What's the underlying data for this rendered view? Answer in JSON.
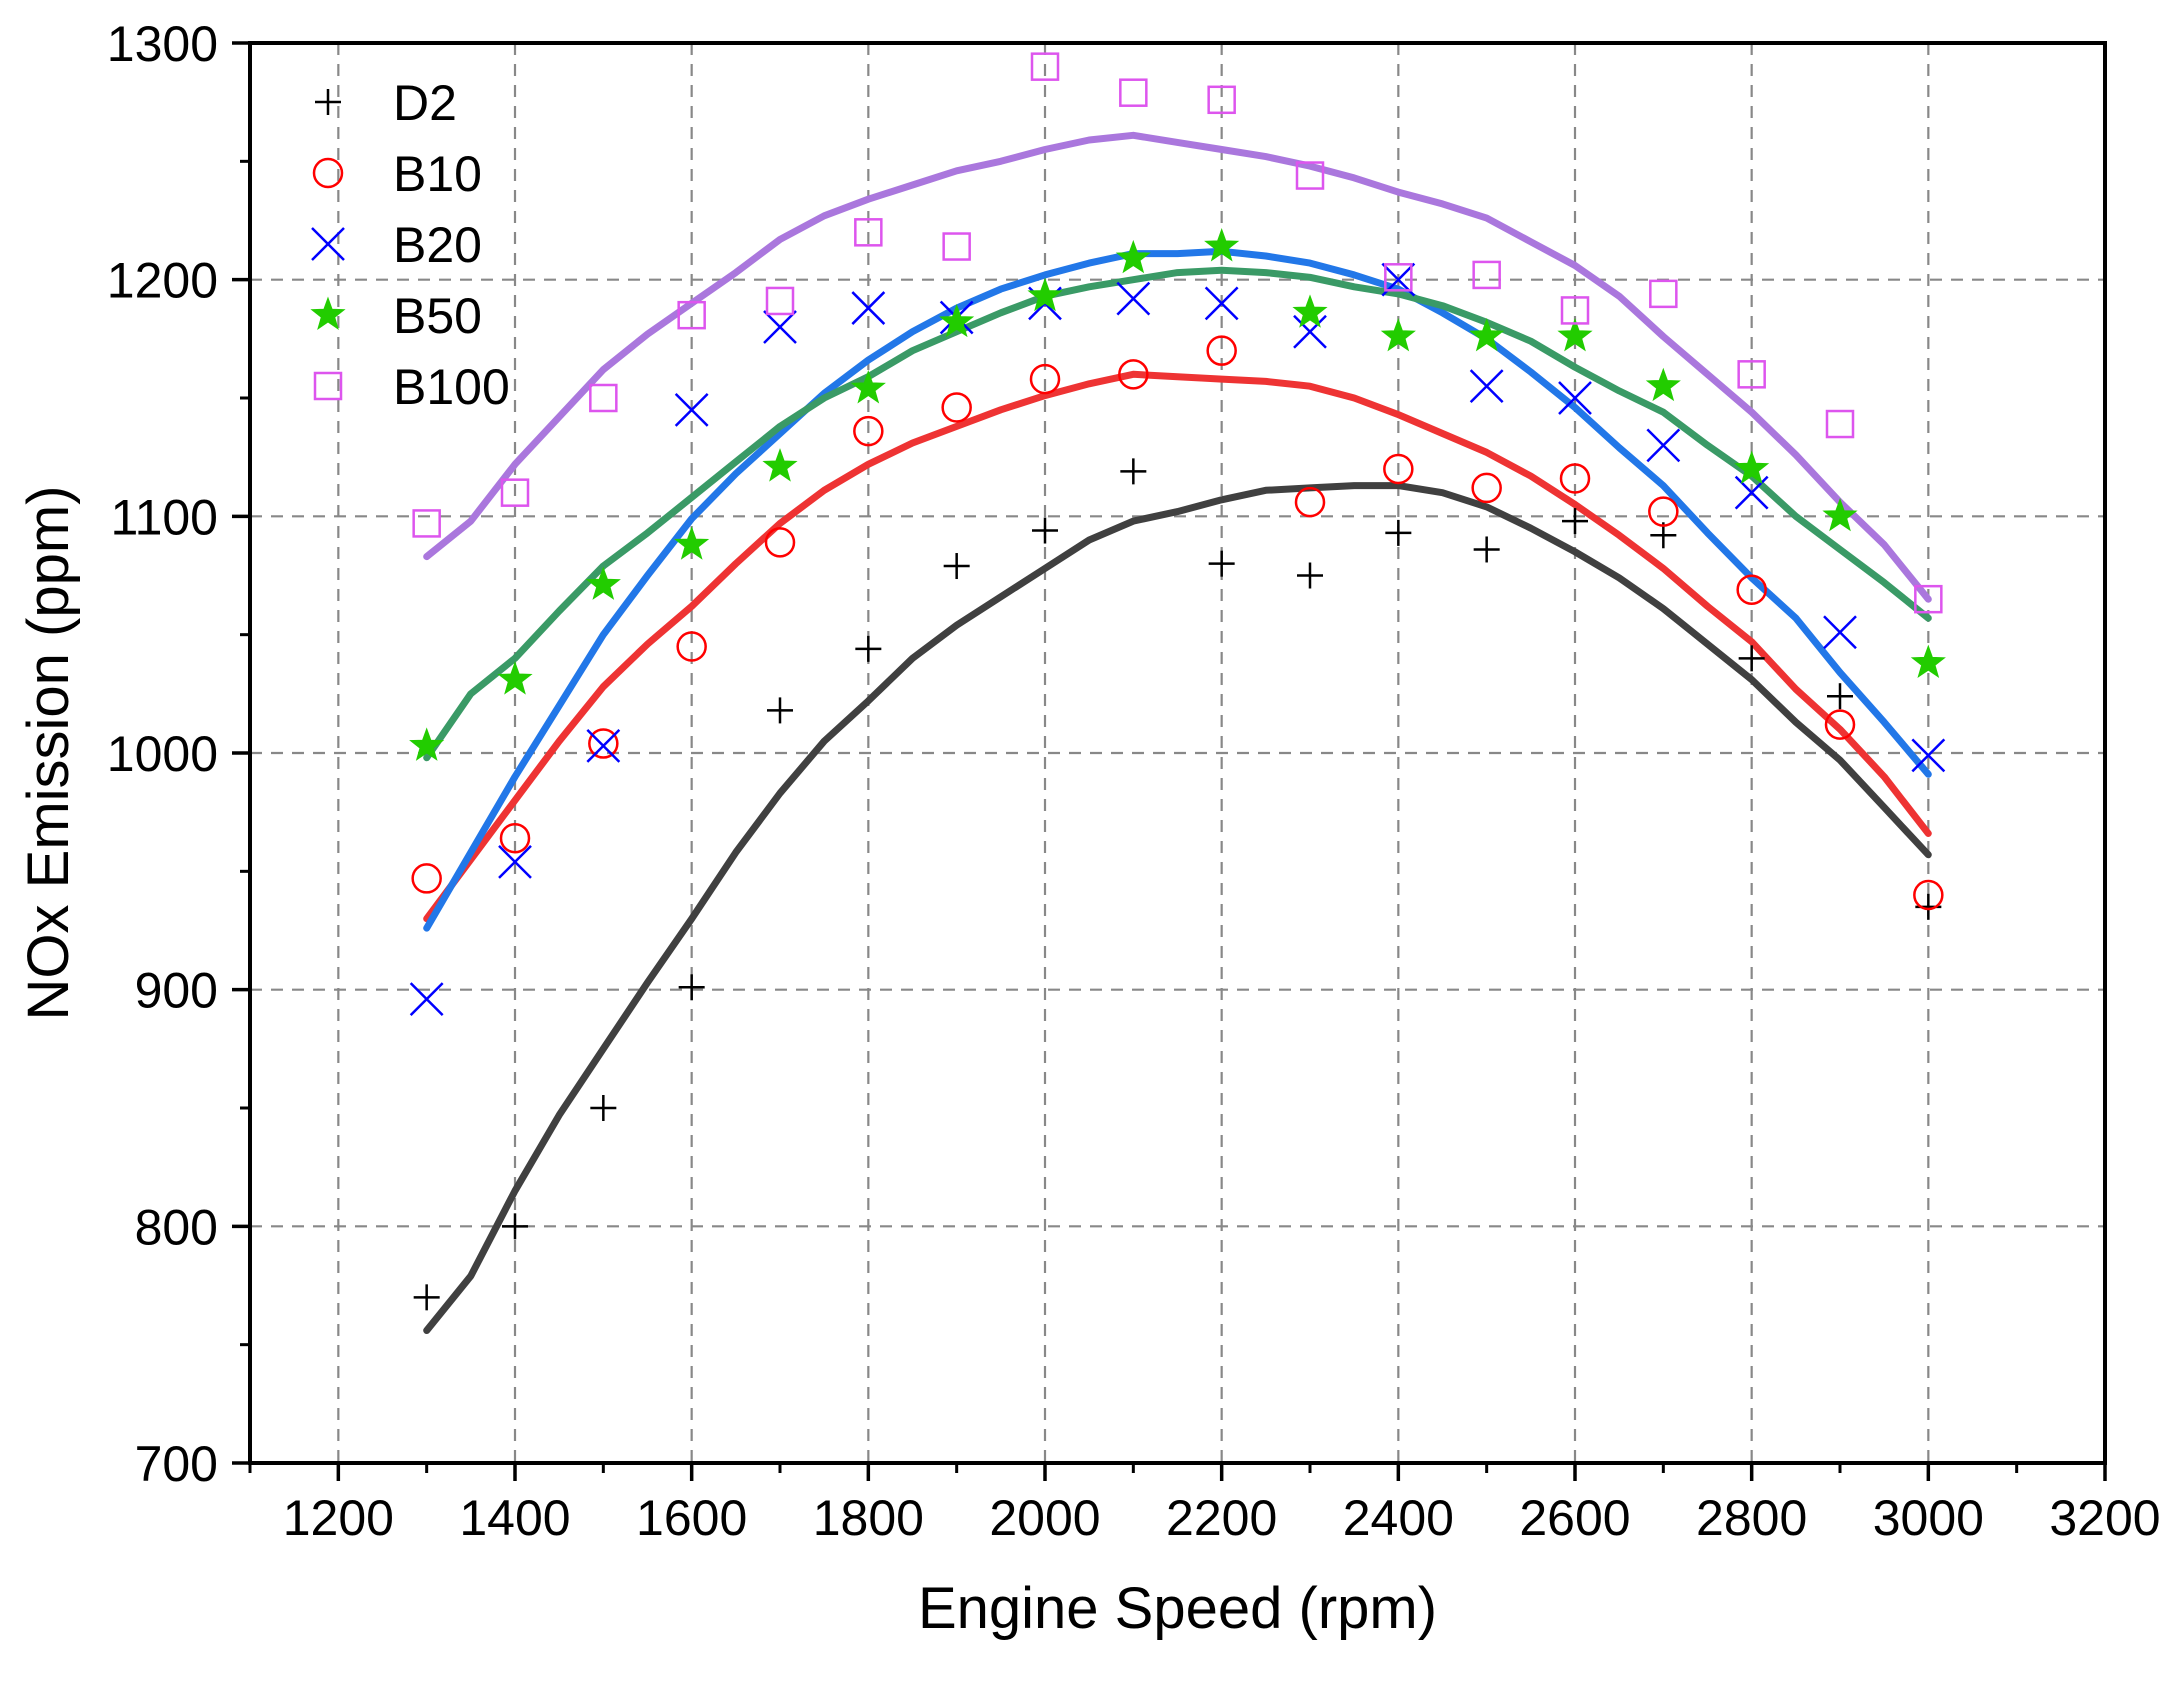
{
  "chart_data": {
    "type": "scatter",
    "title": "",
    "xlabel": "Engine Speed  (rpm)",
    "ylabel": "NOx Emission (ppm)",
    "xlim": [
      1100,
      3200
    ],
    "ylim": [
      700,
      1300
    ],
    "xticks": [
      1200,
      1400,
      1600,
      1800,
      2000,
      2200,
      2400,
      2600,
      2800,
      3000,
      3200
    ],
    "yticks": [
      700,
      800,
      900,
      1000,
      1100,
      1200,
      1300
    ],
    "x_tick_labels": [
      "1200",
      "1400",
      "1600",
      "1800",
      "2000",
      "2200",
      "2400",
      "2600",
      "2800",
      "3000",
      "3200"
    ],
    "y_tick_labels": [
      "700",
      "800",
      "900",
      "1000",
      "1100",
      "1200",
      "1300"
    ],
    "grid": true,
    "legend_position": "top-left",
    "series": [
      {
        "name": "D2",
        "marker": "plus",
        "color": "#000000",
        "line_color": "#404040",
        "x": [
          1300,
          1400,
          1500,
          1600,
          1700,
          1800,
          1900,
          2000,
          2100,
          2200,
          2300,
          2400,
          2500,
          2600,
          2700,
          2800,
          2900,
          3000
        ],
        "y": [
          770,
          800,
          850,
          901,
          1018,
          1044,
          1079,
          1094,
          1119,
          1080,
          1075,
          1093,
          1086,
          1098,
          1092,
          1040,
          1024,
          935
        ],
        "fit_x": [
          1300,
          1350,
          1400,
          1450,
          1500,
          1550,
          1600,
          1650,
          1700,
          1750,
          1800,
          1850,
          1900,
          1950,
          2000,
          2050,
          2100,
          2150,
          2200,
          2250,
          2300,
          2350,
          2400,
          2450,
          2500,
          2550,
          2600,
          2650,
          2700,
          2750,
          2800,
          2850,
          2900,
          2950,
          3000
        ],
        "fit_y": [
          756,
          779,
          815,
          847,
          875,
          903,
          930,
          958,
          983,
          1005,
          1022,
          1040,
          1054,
          1066,
          1078,
          1090,
          1098,
          1102,
          1107,
          1111,
          1112,
          1113,
          1113,
          1110,
          1104,
          1095,
          1085,
          1074,
          1061,
          1046,
          1031,
          1013,
          997,
          977,
          957
        ]
      },
      {
        "name": "B10",
        "marker": "circle",
        "color": "#ff0000",
        "line_color": "#ee3333",
        "x": [
          1300,
          1400,
          1500,
          1600,
          1700,
          1800,
          1900,
          2000,
          2100,
          2200,
          2300,
          2400,
          2500,
          2600,
          2700,
          2800,
          2900,
          3000
        ],
        "y": [
          947,
          964,
          1004,
          1045,
          1089,
          1136,
          1146,
          1158,
          1160,
          1170,
          1106,
          1120,
          1112,
          1116,
          1102,
          1069,
          1012,
          940
        ],
        "fit_x": [
          1300,
          1350,
          1400,
          1450,
          1500,
          1550,
          1600,
          1650,
          1700,
          1750,
          1800,
          1850,
          1900,
          1950,
          2000,
          2050,
          2100,
          2150,
          2200,
          2250,
          2300,
          2350,
          2400,
          2450,
          2500,
          2550,
          2600,
          2650,
          2700,
          2750,
          2800,
          2850,
          2900,
          2950,
          3000
        ],
        "fit_y": [
          930,
          955,
          980,
          1005,
          1028,
          1046,
          1062,
          1080,
          1097,
          1111,
          1122,
          1131,
          1138,
          1145,
          1151,
          1156,
          1160,
          1159,
          1158,
          1157,
          1155,
          1150,
          1143,
          1135,
          1127,
          1117,
          1105,
          1092,
          1078,
          1062,
          1047,
          1027,
          1010,
          990,
          966
        ]
      },
      {
        "name": "B20",
        "marker": "x",
        "color": "#0000ff",
        "line_color": "#2277e8",
        "x": [
          1300,
          1400,
          1500,
          1600,
          1700,
          1800,
          1900,
          2000,
          2100,
          2200,
          2300,
          2400,
          2500,
          2600,
          2700,
          2800,
          2900,
          3000
        ],
        "y": [
          896,
          954,
          1003,
          1145,
          1180,
          1188,
          1184,
          1190,
          1192,
          1190,
          1178,
          1200,
          1155,
          1150,
          1130,
          1110,
          1051,
          999
        ],
        "fit_x": [
          1300,
          1350,
          1400,
          1450,
          1500,
          1550,
          1600,
          1650,
          1700,
          1750,
          1800,
          1850,
          1900,
          1950,
          2000,
          2050,
          2100,
          2150,
          2200,
          2250,
          2300,
          2350,
          2400,
          2450,
          2500,
          2550,
          2600,
          2650,
          2700,
          2750,
          2800,
          2850,
          2900,
          2950,
          3000
        ],
        "fit_y": [
          926,
          958,
          990,
          1020,
          1050,
          1075,
          1099,
          1118,
          1135,
          1152,
          1166,
          1178,
          1188,
          1196,
          1202,
          1207,
          1211,
          1211,
          1212,
          1210,
          1207,
          1202,
          1196,
          1186,
          1175,
          1161,
          1146,
          1129,
          1113,
          1093,
          1074,
          1057,
          1034,
          1013,
          991
        ]
      },
      {
        "name": "B50",
        "marker": "star",
        "color": "#22cc00",
        "line_color": "#3a9a66",
        "x": [
          1300,
          1400,
          1500,
          1600,
          1700,
          1800,
          1900,
          2000,
          2100,
          2200,
          2300,
          2400,
          2500,
          2600,
          2700,
          2800,
          2900,
          3000
        ],
        "y": [
          1003,
          1031,
          1071,
          1088,
          1121,
          1154,
          1182,
          1193,
          1209,
          1214,
          1186,
          1176,
          1176,
          1176,
          1155,
          1120,
          1100,
          1038
        ],
        "fit_x": [
          1300,
          1350,
          1400,
          1450,
          1500,
          1550,
          1600,
          1650,
          1700,
          1750,
          1800,
          1850,
          1900,
          1950,
          2000,
          2050,
          2100,
          2150,
          2200,
          2250,
          2300,
          2350,
          2400,
          2450,
          2500,
          2550,
          2600,
          2650,
          2700,
          2750,
          2800,
          2850,
          2900,
          2950,
          3000
        ],
        "fit_y": [
          998,
          1025,
          1040,
          1060,
          1079,
          1093,
          1108,
          1123,
          1138,
          1150,
          1159,
          1170,
          1178,
          1186,
          1193,
          1197,
          1200,
          1203,
          1204,
          1203,
          1201,
          1197,
          1194,
          1189,
          1182,
          1174,
          1163,
          1153,
          1144,
          1130,
          1117,
          1100,
          1086,
          1072,
          1057
        ]
      },
      {
        "name": "B100",
        "marker": "square",
        "color": "#dd55ee",
        "line_color": "#aa77dd",
        "x": [
          1300,
          1400,
          1500,
          1600,
          1700,
          1800,
          1900,
          2000,
          2100,
          2200,
          2300,
          2400,
          2500,
          2600,
          2700,
          2800,
          2900,
          3000
        ],
        "y": [
          1097,
          1110,
          1150,
          1185,
          1191,
          1220,
          1214,
          1290,
          1279,
          1276,
          1244,
          1201,
          1202,
          1187,
          1194,
          1160,
          1139,
          1065
        ],
        "fit_x": [
          1300,
          1350,
          1400,
          1450,
          1500,
          1550,
          1600,
          1650,
          1700,
          1750,
          1800,
          1850,
          1900,
          1950,
          2000,
          2050,
          2100,
          2150,
          2200,
          2250,
          2300,
          2350,
          2400,
          2450,
          2500,
          2550,
          2600,
          2650,
          2700,
          2750,
          2800,
          2850,
          2900,
          2950,
          3000
        ],
        "fit_y": [
          1083,
          1098,
          1122,
          1142,
          1162,
          1177,
          1190,
          1203,
          1217,
          1227,
          1234,
          1240,
          1246,
          1250,
          1255,
          1259,
          1261,
          1258,
          1255,
          1252,
          1248,
          1243,
          1237,
          1232,
          1226,
          1216,
          1206,
          1193,
          1176,
          1160,
          1144,
          1126,
          1106,
          1088,
          1065
        ]
      }
    ]
  }
}
